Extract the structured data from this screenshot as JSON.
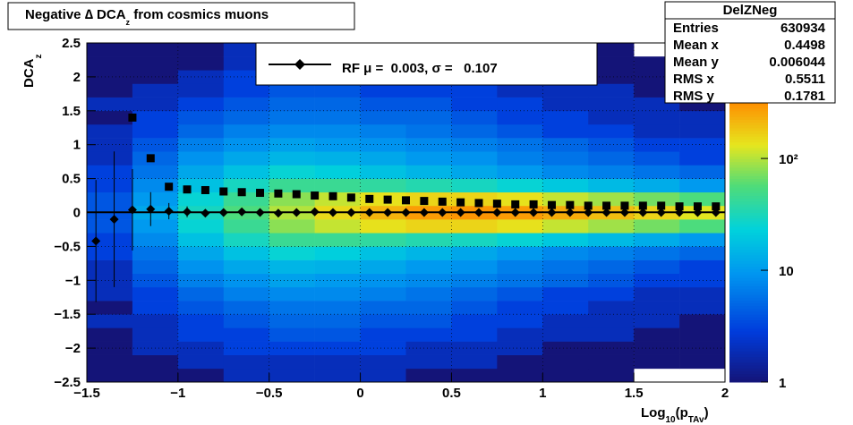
{
  "chart_data": {
    "type": "heatmap",
    "title": {
      "main": "Negative ∆ DCA",
      "sub": "z",
      "rest": " from cosmics muons"
    },
    "x_label": {
      "main": "Log",
      "sub1": "10",
      "mid": "(p",
      "sub2": "TAv",
      "end": ")"
    },
    "y_label": {
      "main": "DCA",
      "sub": "z"
    },
    "xlim": [
      -1.5,
      2
    ],
    "ylim": [
      -2.5,
      2.5
    ],
    "xticks": [
      {
        "value": -1.5,
        "label": "−1.5"
      },
      {
        "value": -1,
        "label": "−1"
      },
      {
        "value": -0.5,
        "label": "−0.5"
      },
      0,
      0.5,
      1,
      1.5,
      2
    ],
    "yticks": [
      {
        "value": -2.5,
        "label": "−2.5"
      },
      {
        "value": -2,
        "label": "−2"
      },
      {
        "value": -1.5,
        "label": "−1.5"
      },
      {
        "value": -1,
        "label": "−1"
      },
      {
        "value": -0.5,
        "label": "−0.5"
      },
      0,
      0.5,
      1,
      1.5,
      2,
      2.5
    ],
    "grid": true,
    "zlog": true,
    "colormap": "rainbow",
    "zlim": [
      1,
      1080
    ],
    "zticks": [
      1,
      10,
      {
        "value": 100,
        "label": "10²"
      }
    ],
    "xbins": [
      -1.5,
      -1.25,
      -1,
      -0.75,
      -0.5,
      -0.25,
      0,
      0.25,
      0.5,
      0.75,
      1,
      1.25,
      1.5,
      1.75,
      2
    ],
    "ybins": [
      -2.5,
      -2.3,
      -2.1,
      -1.9,
      -1.7,
      -1.5,
      -1.3,
      -1.1,
      -0.9,
      -0.7,
      -0.5,
      -0.3,
      -0.1,
      0.1,
      0.3,
      0.5,
      0.7,
      0.9,
      1.1,
      1.3,
      1.5,
      1.7,
      1.9,
      2.1,
      2.3,
      2.5
    ],
    "counts": [
      [
        1,
        1,
        1,
        1,
        2,
        1,
        2,
        2,
        2,
        3,
        3,
        4,
        4,
        4,
        3,
        3,
        2,
        2,
        2,
        1,
        2,
        1,
        1,
        1,
        1
      ],
      [
        1,
        1,
        2,
        2,
        2,
        3,
        3,
        4,
        5,
        6,
        8,
        10,
        12,
        10,
        8,
        6,
        5,
        4,
        3,
        3,
        2,
        2,
        1,
        1,
        1
      ],
      [
        1,
        2,
        2,
        3,
        3,
        4,
        5,
        7,
        9,
        12,
        18,
        25,
        30,
        25,
        18,
        12,
        9,
        7,
        5,
        4,
        3,
        2,
        2,
        1,
        1
      ],
      [
        2,
        2,
        3,
        3,
        4,
        5,
        7,
        9,
        12,
        18,
        30,
        45,
        55,
        45,
        30,
        18,
        12,
        9,
        7,
        5,
        4,
        3,
        3,
        2,
        2
      ],
      [
        2,
        2,
        3,
        4,
        5,
        6,
        8,
        11,
        15,
        25,
        45,
        80,
        100,
        80,
        45,
        25,
        15,
        11,
        8,
        6,
        5,
        4,
        3,
        2,
        2
      ],
      [
        2,
        2,
        3,
        4,
        5,
        6,
        8,
        10,
        14,
        22,
        45,
        110,
        150,
        110,
        45,
        22,
        14,
        10,
        8,
        6,
        5,
        4,
        3,
        2,
        2
      ],
      [
        2,
        2,
        3,
        3,
        4,
        5,
        7,
        9,
        12,
        18,
        40,
        140,
        220,
        140,
        40,
        18,
        12,
        9,
        7,
        5,
        4,
        3,
        3,
        2,
        2
      ],
      [
        1,
        2,
        2,
        3,
        4,
        5,
        6,
        8,
        10,
        15,
        35,
        160,
        280,
        160,
        35,
        15,
        10,
        8,
        6,
        5,
        4,
        3,
        2,
        2,
        1
      ],
      [
        1,
        2,
        2,
        3,
        3,
        4,
        5,
        7,
        9,
        12,
        30,
        160,
        300,
        160,
        30,
        12,
        9,
        7,
        5,
        4,
        3,
        3,
        2,
        2,
        1
      ],
      [
        1,
        1,
        2,
        2,
        3,
        3,
        4,
        6,
        7,
        10,
        25,
        140,
        280,
        140,
        25,
        10,
        7,
        6,
        4,
        3,
        3,
        2,
        2,
        1,
        1
      ],
      [
        1,
        1,
        1,
        2,
        2,
        3,
        3,
        5,
        6,
        8,
        20,
        110,
        240,
        110,
        20,
        8,
        6,
        5,
        3,
        3,
        2,
        2,
        1,
        1,
        1
      ],
      [
        1,
        1,
        1,
        2,
        2,
        2,
        3,
        4,
        5,
        7,
        16,
        90,
        200,
        90,
        16,
        7,
        5,
        4,
        3,
        2,
        2,
        2,
        1,
        1,
        1
      ],
      [
        0,
        1,
        1,
        1,
        2,
        2,
        2,
        3,
        4,
        6,
        13,
        70,
        160,
        70,
        13,
        6,
        4,
        3,
        2,
        2,
        2,
        1,
        1,
        1,
        0
      ],
      [
        0,
        1,
        1,
        1,
        1,
        2,
        2,
        3,
        3,
        5,
        10,
        55,
        130,
        55,
        10,
        5,
        3,
        3,
        2,
        2,
        1,
        1,
        1,
        1,
        0
      ]
    ],
    "hline": 0.003,
    "series": [
      {
        "name": "RF μ =  0.003, σ =   0.107",
        "marker": "diamond",
        "color": "#000000",
        "x": [
          -1.45,
          -1.35,
          -1.25,
          -1.15,
          -1.05,
          -0.95,
          -0.85,
          -0.75,
          -0.65,
          -0.55,
          -0.45,
          -0.35,
          -0.25,
          -0.15,
          -0.05,
          0.05,
          0.15,
          0.25,
          0.35,
          0.45,
          0.55,
          0.65,
          0.75,
          0.85,
          0.95,
          1.05,
          1.15,
          1.25,
          1.35,
          1.45,
          1.55,
          1.65,
          1.75,
          1.85,
          1.95
        ],
        "values": [
          -0.42,
          -0.1,
          0.04,
          0.05,
          0.02,
          0.01,
          -0.01,
          0,
          0.01,
          0,
          -0.01,
          0,
          0.01,
          0,
          0,
          0,
          0,
          0,
          0,
          0,
          0,
          0,
          0,
          0,
          0,
          0,
          0,
          0,
          0,
          0,
          0,
          0,
          0,
          0,
          0
        ],
        "errors": [
          0.9,
          1.0,
          0.6,
          0.25,
          0.12,
          0.08,
          0.05,
          0.04,
          0.03,
          0.02,
          0.02,
          0.02,
          0.01,
          0.01,
          0.01,
          0.01,
          0.01,
          0.01,
          0.01,
          0.01,
          0.01,
          0.01,
          0.01,
          0.01,
          0.01,
          0.01,
          0.01,
          0.01,
          0.01,
          0.01,
          0.01,
          0.01,
          0.01,
          0.01,
          0.01
        ]
      },
      {
        "marker": "square",
        "color": "#000000",
        "x": [
          -1.45,
          -1.35,
          -1.25,
          -1.15,
          -1.05,
          -0.95,
          -0.85,
          -0.75,
          -0.65,
          -0.55,
          -0.45,
          -0.35,
          -0.25,
          -0.15,
          -0.05,
          0.05,
          0.15,
          0.25,
          0.35,
          0.45,
          0.55,
          0.65,
          0.75,
          0.85,
          0.95,
          1.05,
          1.15,
          1.25,
          1.35,
          1.45,
          1.55,
          1.65,
          1.75,
          1.85,
          1.95
        ],
        "values": [
          null,
          null,
          1.4,
          0.8,
          0.38,
          0.34,
          0.33,
          0.31,
          0.3,
          0.29,
          0.28,
          0.27,
          0.25,
          0.24,
          0.22,
          0.2,
          0.19,
          0.18,
          0.17,
          0.16,
          0.15,
          0.14,
          0.13,
          0.12,
          0.12,
          0.11,
          0.11,
          0.1,
          0.1,
          0.1,
          0.1,
          0.1,
          0.09,
          0.09,
          0.09
        ]
      }
    ],
    "stats": {
      "title": "DelZNeg",
      "rows": [
        [
          "Entries",
          630934
        ],
        [
          "Mean x",
          0.4498
        ],
        [
          "Mean y",
          0.006044
        ],
        [
          "RMS x",
          0.5511
        ],
        [
          "RMS y",
          0.1781
        ]
      ]
    }
  }
}
